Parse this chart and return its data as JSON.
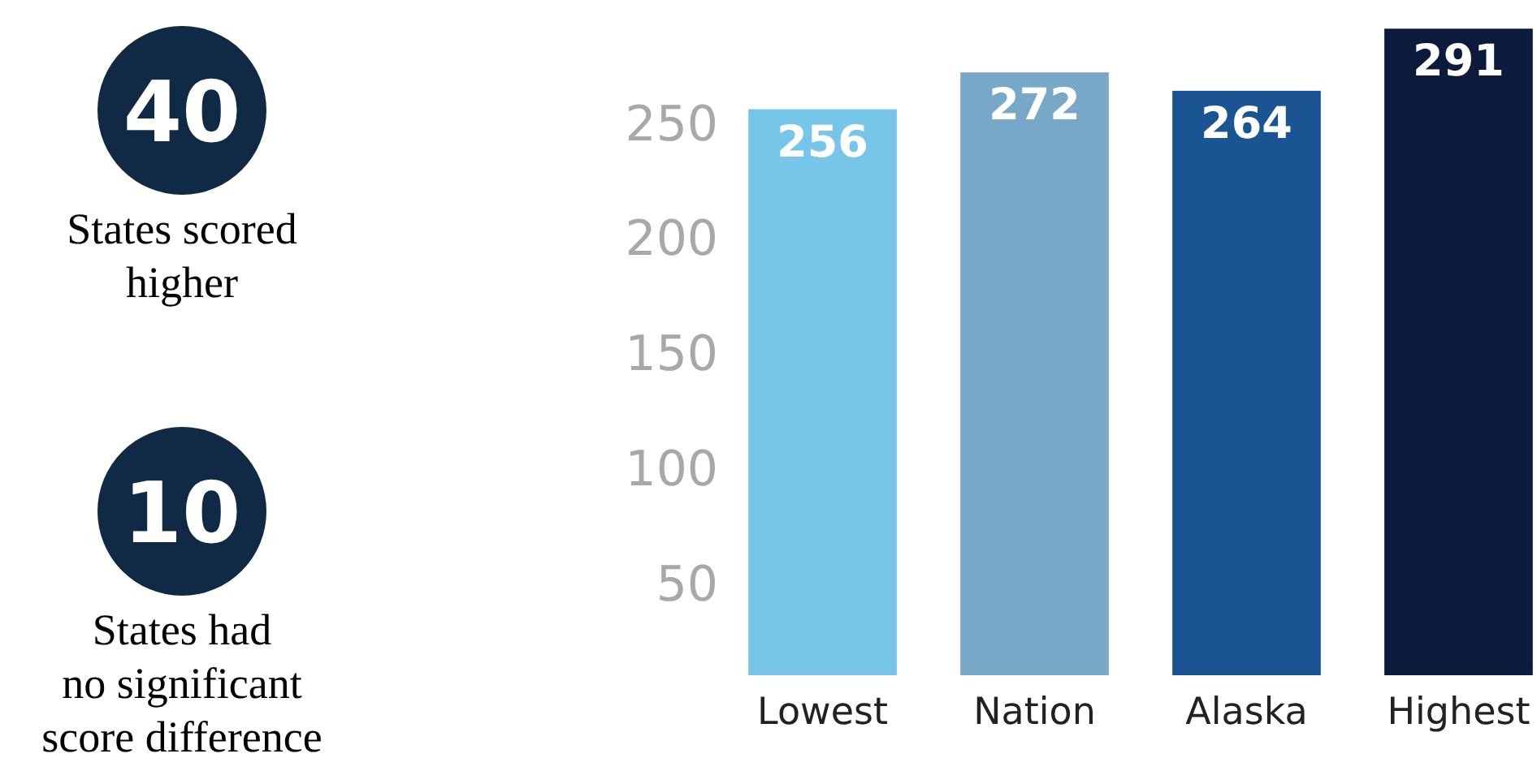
{
  "chart_data": [
    {
      "type": "other",
      "annotations": [
        "40",
        "States scored\nhigher",
        "10",
        "States had\nno significant\nscore difference"
      ]
    },
    {
      "type": "bar",
      "categories": [
        "Lowest",
        "Nation",
        "Alaska",
        "Highest"
      ],
      "values": [
        256,
        272,
        264,
        291
      ],
      "colors": [
        "#78c5ea",
        "#78a8c8",
        "#1a5493",
        "#0c1a3c"
      ],
      "ylim": [
        10,
        295
      ],
      "yticks": [
        50,
        100,
        150,
        200,
        250
      ],
      "data_labels": true
    }
  ]
}
